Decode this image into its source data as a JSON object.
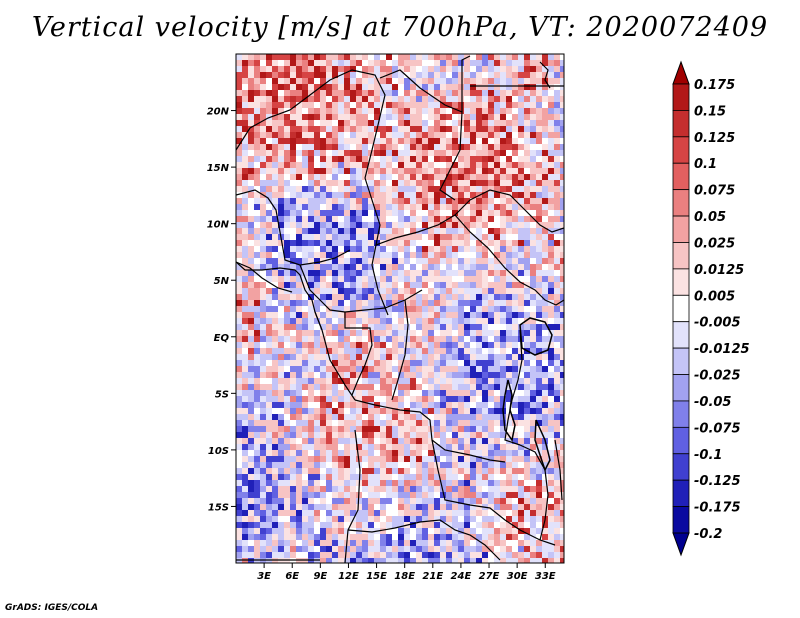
{
  "title": "Vertical velocity [m/s] at 700hPa, VT: 2020072409",
  "credit": "GrADS: IGES/COLA",
  "map": {
    "lon_range": [
      0,
      35
    ],
    "lat_range": [
      -20,
      25
    ],
    "lon_ticks": [
      "3E",
      "6E",
      "9E",
      "12E",
      "15E",
      "18E",
      "21E",
      "24E",
      "27E",
      "30E",
      "33E"
    ],
    "lat_ticks": [
      "20N",
      "15N",
      "10N",
      "5N",
      "EQ",
      "5S",
      "10S",
      "15S"
    ]
  },
  "colorbar": {
    "labels": [
      "0.175",
      "0.15",
      "0.125",
      "0.1",
      "0.075",
      "0.05",
      "0.025",
      "0.0125",
      "0.005",
      "-0.005",
      "-0.0125",
      "-0.025",
      "-0.05",
      "-0.075",
      "-0.1",
      "-0.125",
      "-0.175",
      "-0.2"
    ],
    "colors": [
      "#a00000",
      "#b21818",
      "#c42e2e",
      "#d64444",
      "#e26060",
      "#ea8080",
      "#f2a2a2",
      "#f7c4c4",
      "#fbe2e2",
      "#ffffff",
      "#e2e2fb",
      "#c4c4f7",
      "#a2a2f0",
      "#8080ea",
      "#6060e2",
      "#4040d0",
      "#2020b8",
      "#0a0aa0",
      "#000090"
    ]
  }
}
